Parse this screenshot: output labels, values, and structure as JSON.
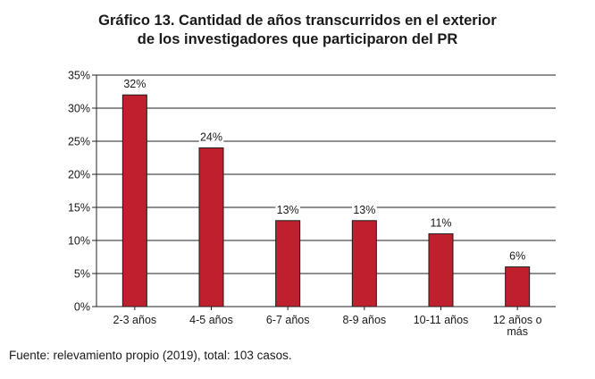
{
  "chart_data": {
    "type": "bar",
    "title_lines": [
      "Gráfico 13. Cantidad de años transcurridos en el exterior",
      "de los investigadores que participaron del PR"
    ],
    "categories": [
      [
        "2-3 años"
      ],
      [
        "4-5 años"
      ],
      [
        "6-7 años"
      ],
      [
        "8-9 años"
      ],
      [
        "10-11 años"
      ],
      [
        "12 años o",
        "más"
      ]
    ],
    "values": [
      32,
      24,
      13,
      13,
      11,
      6
    ],
    "data_labels": [
      "32%",
      "24%",
      "13%",
      "13%",
      "11%",
      "6%"
    ],
    "yticks": [
      0,
      5,
      10,
      15,
      20,
      25,
      30,
      35
    ],
    "ytick_labels": [
      "0%",
      "5%",
      "10%",
      "15%",
      "20%",
      "25%",
      "30%",
      "35%"
    ],
    "ylim": [
      0,
      35
    ],
    "grid": true,
    "bar_color": "#c0202e",
    "xlabel": "",
    "ylabel": ""
  },
  "source_note": "Fuente: relevamiento propio (2019), total: 103 casos."
}
